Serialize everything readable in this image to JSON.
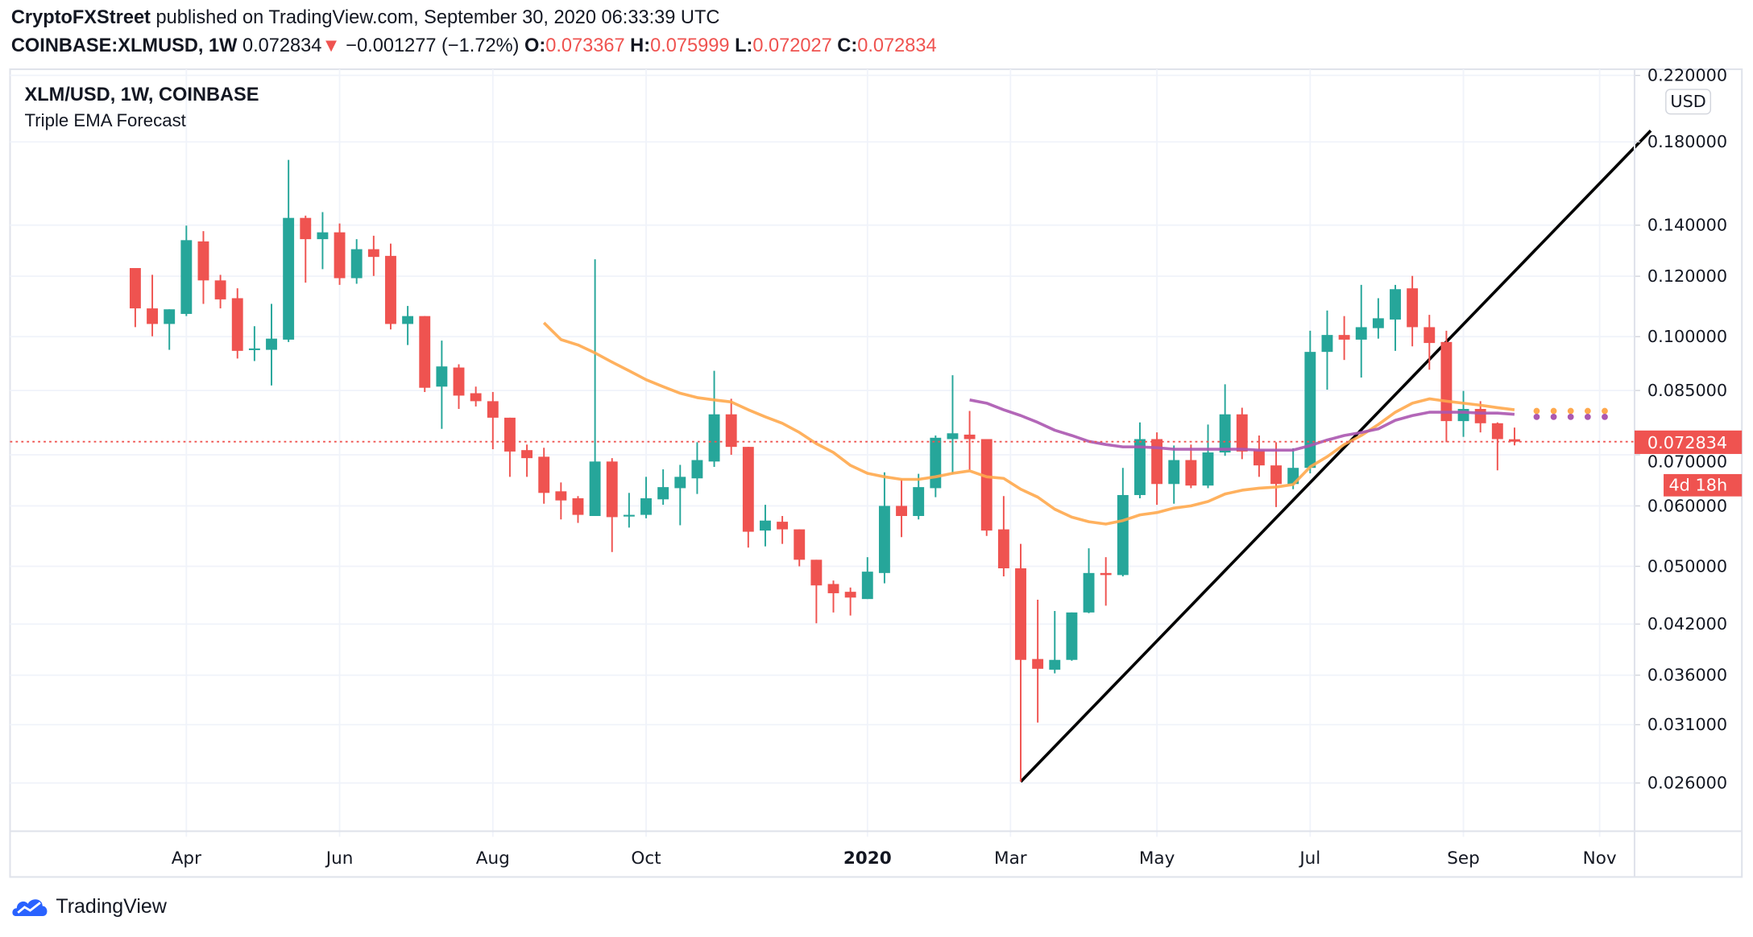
{
  "header": {
    "publisher": "CryptoFXStreet",
    "published_text": "published on TradingView.com, September 30, 2020 06:33:39 UTC",
    "symbol": "COINBASE:XLMUSD, 1W",
    "last": "0.072834",
    "change_arrow": "▼",
    "change": "−0.001277 (−1.72%)",
    "o_label": "O:",
    "o": "0.073367",
    "h_label": "H:",
    "h": "0.075999",
    "l_label": "L:",
    "l": "0.072027",
    "c_label": "C:",
    "c": "0.072834"
  },
  "legend": {
    "title": "XLM/USD, 1W, COINBASE",
    "indicator": "Triple EMA Forecast"
  },
  "price_axis": {
    "currency": "USD",
    "last_price_label": "0.072834",
    "countdown": "4d 18h"
  },
  "footer": {
    "brand": "TradingView"
  },
  "colors": {
    "up": "#26a69a",
    "down": "#ef5350",
    "ema_fast": "#ffa94d",
    "ema_slow": "#ab57b0",
    "trendline": "#000000",
    "grid": "#f0f3fa"
  },
  "chart_data": {
    "type": "candlestick",
    "title": "XLM/USD, 1W, COINBASE",
    "scale": "log",
    "ylim": [
      0.0235,
      0.225
    ],
    "first_week": "2019-03-11",
    "interval": "1W",
    "y_ticks": [
      {
        "value": 0.22,
        "label": "0.220000"
      },
      {
        "value": 0.18,
        "label": "0.180000"
      },
      {
        "value": 0.14,
        "label": "0.140000"
      },
      {
        "value": 0.12,
        "label": "0.120000"
      },
      {
        "value": 0.1,
        "label": "0.100000"
      },
      {
        "value": 0.085,
        "label": "0.085000"
      },
      {
        "value": 0.07,
        "label": "0.070000"
      },
      {
        "value": 0.06,
        "label": "0.060000"
      },
      {
        "value": 0.05,
        "label": "0.050000"
      },
      {
        "value": 0.042,
        "label": "0.042000"
      },
      {
        "value": 0.036,
        "label": "0.036000"
      },
      {
        "value": 0.031,
        "label": "0.031000"
      },
      {
        "value": 0.026,
        "label": "0.026000"
      }
    ],
    "x_ticks": [
      {
        "week_index": 3,
        "label": "Apr"
      },
      {
        "week_index": 12,
        "label": "Jun"
      },
      {
        "week_index": 21,
        "label": "Aug"
      },
      {
        "week_index": 30,
        "label": "Oct"
      },
      {
        "week_index": 43,
        "label": "2020",
        "bold": true
      },
      {
        "week_index": 51.4,
        "label": "Mar"
      },
      {
        "week_index": 60,
        "label": "May"
      },
      {
        "week_index": 69,
        "label": "Jul"
      },
      {
        "week_index": 78,
        "label": "Sep"
      },
      {
        "week_index": 86,
        "label": "Nov"
      }
    ],
    "candles_ohlc": [
      [
        0.123,
        0.123,
        0.1029,
        0.1089
      ],
      [
        0.1089,
        0.1205,
        0.1001,
        0.1039
      ],
      [
        0.1039,
        0.1086,
        0.0961,
        0.1086
      ],
      [
        0.1071,
        0.1398,
        0.1064,
        0.1338
      ],
      [
        0.1333,
        0.1375,
        0.1104,
        0.1185
      ],
      [
        0.1185,
        0.1205,
        0.1089,
        0.1119
      ],
      [
        0.1123,
        0.1157,
        0.0936,
        0.0958
      ],
      [
        0.0961,
        0.1032,
        0.0929,
        0.0965
      ],
      [
        0.0961,
        0.1104,
        0.0863,
        0.0994
      ],
      [
        0.0991,
        0.1705,
        0.0984,
        0.1431
      ],
      [
        0.1431,
        0.1441,
        0.1177,
        0.1342
      ],
      [
        0.1342,
        0.1456,
        0.1226,
        0.137
      ],
      [
        0.137,
        0.1407,
        0.1169,
        0.1193
      ],
      [
        0.1193,
        0.1342,
        0.1173,
        0.1302
      ],
      [
        0.1302,
        0.1356,
        0.1201,
        0.1272
      ],
      [
        0.1276,
        0.1324,
        0.1022,
        0.1039
      ],
      [
        0.1039,
        0.1097,
        0.0975,
        0.1064
      ],
      [
        0.1064,
        0.1064,
        0.0846,
        0.0857
      ],
      [
        0.086,
        0.0988,
        0.0757,
        0.0914
      ],
      [
        0.0911,
        0.092,
        0.0804,
        0.0837
      ],
      [
        0.0843,
        0.086,
        0.081,
        0.0823
      ],
      [
        0.0823,
        0.0846,
        0.0712,
        0.0783
      ],
      [
        0.0783,
        0.0783,
        0.0655,
        0.0707
      ],
      [
        0.071,
        0.0722,
        0.0655,
        0.0693
      ],
      [
        0.0696,
        0.0715,
        0.0604,
        0.0624
      ],
      [
        0.0627,
        0.0644,
        0.0576,
        0.061
      ],
      [
        0.0614,
        0.0618,
        0.057,
        0.0584
      ],
      [
        0.0582,
        0.1263,
        0.0582,
        0.0686
      ],
      [
        0.0686,
        0.0693,
        0.0522,
        0.058
      ],
      [
        0.0582,
        0.0624,
        0.0562,
        0.0584
      ],
      [
        0.0584,
        0.0655,
        0.0578,
        0.0614
      ],
      [
        0.0612,
        0.067,
        0.0602,
        0.0635
      ],
      [
        0.0633,
        0.0679,
        0.0566,
        0.0655
      ],
      [
        0.0652,
        0.0727,
        0.0622,
        0.0689
      ],
      [
        0.0686,
        0.0902,
        0.0675,
        0.0791
      ],
      [
        0.0791,
        0.0829,
        0.07,
        0.0717
      ],
      [
        0.0717,
        0.0717,
        0.0529,
        0.0555
      ],
      [
        0.0557,
        0.0602,
        0.0531,
        0.0574
      ],
      [
        0.0572,
        0.0582,
        0.0535,
        0.0559
      ],
      [
        0.0559,
        0.0559,
        0.05,
        0.051
      ],
      [
        0.051,
        0.051,
        0.0421,
        0.0472
      ],
      [
        0.0474,
        0.0479,
        0.0435,
        0.0461
      ],
      [
        0.0463,
        0.0469,
        0.0431,
        0.0455
      ],
      [
        0.0453,
        0.0514,
        0.0453,
        0.0492
      ],
      [
        0.049,
        0.0664,
        0.0475,
        0.06
      ],
      [
        0.06,
        0.065,
        0.0546,
        0.0582
      ],
      [
        0.0582,
        0.0661,
        0.0576,
        0.0635
      ],
      [
        0.0633,
        0.0742,
        0.0616,
        0.0737
      ],
      [
        0.0734,
        0.089,
        0.0661,
        0.0747
      ],
      [
        0.0744,
        0.0799,
        0.0668,
        0.0734
      ],
      [
        0.0734,
        0.0734,
        0.0548,
        0.0557
      ],
      [
        0.0559,
        0.0618,
        0.0485,
        0.0497
      ],
      [
        0.0497,
        0.0535,
        0.0261,
        0.0377
      ],
      [
        0.0378,
        0.0452,
        0.0312,
        0.0367
      ],
      [
        0.0366,
        0.0437,
        0.0362,
        0.0377
      ],
      [
        0.0377,
        0.0435,
        0.0376,
        0.0435
      ],
      [
        0.0435,
        0.0528,
        0.0434,
        0.049
      ],
      [
        0.049,
        0.0514,
        0.0444,
        0.0487
      ],
      [
        0.0487,
        0.0673,
        0.0485,
        0.062
      ],
      [
        0.062,
        0.0772,
        0.0614,
        0.0734
      ],
      [
        0.0734,
        0.0749,
        0.0602,
        0.0641
      ],
      [
        0.0641,
        0.072,
        0.0604,
        0.0689
      ],
      [
        0.0689,
        0.0722,
        0.0633,
        0.0638
      ],
      [
        0.0638,
        0.0767,
        0.0633,
        0.0705
      ],
      [
        0.0705,
        0.0866,
        0.0698,
        0.0791
      ],
      [
        0.0791,
        0.0807,
        0.0691,
        0.0707
      ],
      [
        0.071,
        0.0742,
        0.0655,
        0.0678
      ],
      [
        0.0678,
        0.0727,
        0.0598,
        0.0641
      ],
      [
        0.0641,
        0.0714,
        0.0631,
        0.0673
      ],
      [
        0.0673,
        0.1018,
        0.0662,
        0.0955
      ],
      [
        0.0955,
        0.1082,
        0.0852,
        0.1005
      ],
      [
        0.1005,
        0.1064,
        0.0932,
        0.0991
      ],
      [
        0.0991,
        0.1169,
        0.0884,
        0.1029
      ],
      [
        0.1026,
        0.1123,
        0.0994,
        0.1057
      ],
      [
        0.1053,
        0.1169,
        0.0958,
        0.1154
      ],
      [
        0.1157,
        0.1201,
        0.0971,
        0.1029
      ],
      [
        0.1029,
        0.1068,
        0.0905,
        0.0981
      ],
      [
        0.0984,
        0.1018,
        0.0727,
        0.0775
      ],
      [
        0.0775,
        0.0849,
        0.0739,
        0.0804
      ],
      [
        0.0804,
        0.0823,
        0.0749,
        0.077
      ],
      [
        0.077,
        0.0772,
        0.0668,
        0.0734
      ],
      [
        0.073367,
        0.075999,
        0.072027,
        0.072834
      ]
    ],
    "ema_fast": {
      "start_index": 24,
      "values": [
        0.1043,
        0.0991,
        0.0975,
        0.0952,
        0.0926,
        0.0902,
        0.0878,
        0.086,
        0.0843,
        0.0832,
        0.0826,
        0.0821,
        0.0802,
        0.0785,
        0.077,
        0.0749,
        0.0724,
        0.0705,
        0.0678,
        0.0662,
        0.0655,
        0.065,
        0.065,
        0.0655,
        0.0662,
        0.0667,
        0.0655,
        0.0652,
        0.0631,
        0.0616,
        0.0594,
        0.058,
        0.0572,
        0.0568,
        0.0574,
        0.0584,
        0.0588,
        0.0596,
        0.06,
        0.0608,
        0.0622,
        0.0629,
        0.0633,
        0.0635,
        0.064,
        0.0675,
        0.0696,
        0.0722,
        0.0742,
        0.0767,
        0.0796,
        0.0818,
        0.0829,
        0.0823,
        0.0818,
        0.0813,
        0.0807,
        0.0802
      ]
    },
    "ema_slow": {
      "start_index": 49,
      "values": [
        0.0826,
        0.0818,
        0.0802,
        0.0788,
        0.0772,
        0.0754,
        0.0742,
        0.0729,
        0.0722,
        0.0717,
        0.0717,
        0.0715,
        0.0712,
        0.0712,
        0.0712,
        0.0712,
        0.0712,
        0.071,
        0.071,
        0.071,
        0.072,
        0.0732,
        0.0742,
        0.0749,
        0.0757,
        0.0777,
        0.0788,
        0.0796,
        0.0796,
        0.0796,
        0.0794,
        0.0794,
        0.0791
      ]
    },
    "forecast": {
      "start_index": 82,
      "count": 5,
      "ema_fast": 0.0799,
      "ema_slow": 0.0785
    },
    "trendline": [
      [
        52,
        0.0261
      ],
      [
        89,
        0.1862
      ]
    ],
    "last_price": 0.072834
  }
}
